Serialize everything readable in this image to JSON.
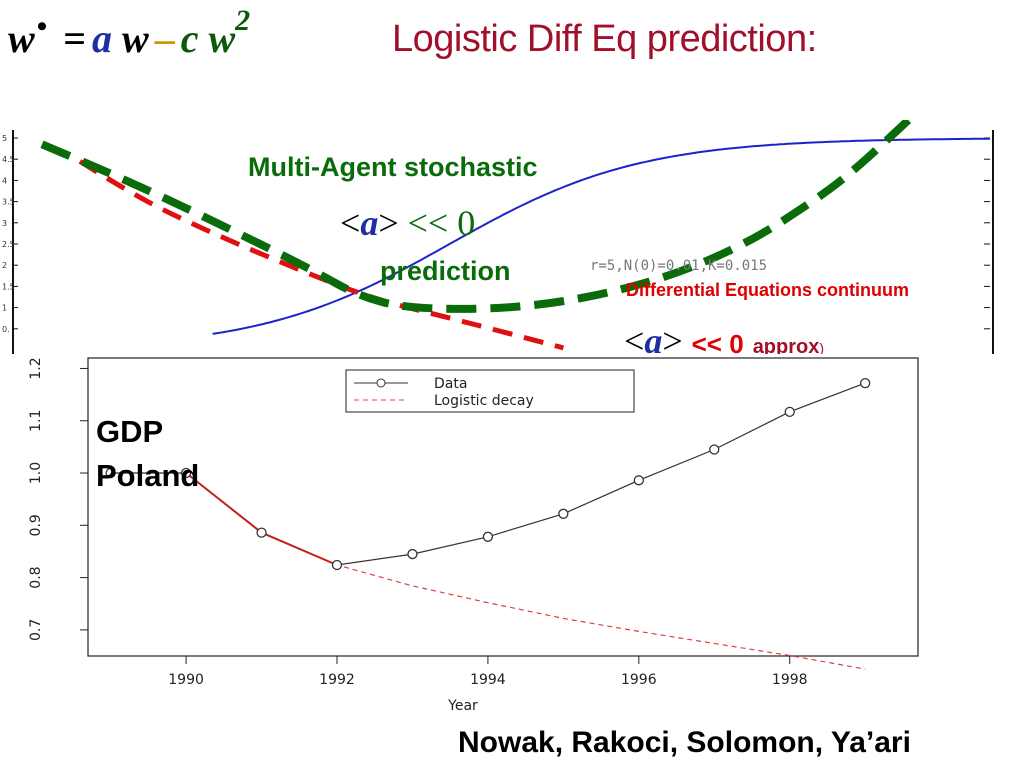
{
  "equation": {
    "lhs": "w",
    "dot": "•",
    "equals": "=",
    "a": "a",
    "w1": "w",
    "minus": "–",
    "c": "c",
    "w2": "w",
    "exp": "2"
  },
  "title": "Logistic Diff Eq prediction:",
  "labels": {
    "multi_agent": "Multi-Agent stochastic",
    "prediction": "prediction",
    "diff_eq": "Differential Equations continuum",
    "params": "r=5,N(0)=0.01,K=0.015",
    "approx": "approx",
    "approx_paren": ")",
    "lt": "<",
    "gt": ">",
    "a_sym": "a",
    "ll_zero": "<< 0",
    "ll_zero_red": "<< 0"
  },
  "gdp_label": [
    "GDP",
    "Poland"
  ],
  "credits": "Nowak, Rakoci, Solomon, Ya’ari",
  "colors": {
    "green": "#0a6b0a",
    "red_dash": "#e01010",
    "blue": "#1a24c8",
    "title": "#a0102a"
  },
  "top_chart": {
    "y_ticks": [
      "5",
      "4.5",
      "4",
      "3.5",
      "3",
      "2.5",
      "2",
      "1.5",
      "1",
      "0."
    ],
    "sigmoid": {
      "K": 5,
      "x0": 0.43,
      "k": 10
    },
    "green_dashed": [
      [
        0.0,
        4.85
      ],
      [
        0.08,
        4.1
      ],
      [
        0.18,
        3.05
      ],
      [
        0.28,
        1.95
      ],
      [
        0.34,
        1.2
      ],
      [
        0.4,
        0.95
      ],
      [
        0.52,
        1.0
      ],
      [
        0.64,
        1.55
      ],
      [
        0.74,
        2.45
      ],
      [
        0.82,
        3.6
      ],
      [
        0.86,
        4.3
      ],
      [
        0.92,
        5.55
      ]
    ],
    "red_dashed": [
      [
        0.04,
        4.45
      ],
      [
        0.1,
        3.6
      ],
      [
        0.18,
        2.75
      ],
      [
        0.27,
        1.9
      ],
      [
        0.35,
        1.2
      ],
      [
        0.44,
        0.7
      ],
      [
        0.55,
        0.05
      ]
    ]
  },
  "chart_data": {
    "type": "line",
    "xlabel": "Year",
    "ylabel": "",
    "xlim": [
      1988.7,
      1999.7
    ],
    "ylim": [
      0.65,
      1.22
    ],
    "x_ticks": [
      1990,
      1992,
      1994,
      1996,
      1998
    ],
    "y_ticks": [
      0.7,
      0.8,
      0.9,
      1.0,
      1.1,
      1.2
    ],
    "legend": {
      "position": "top-center",
      "entries": [
        "Data",
        "Logistic decay"
      ]
    },
    "series": [
      {
        "name": "Data",
        "style": "line-circle",
        "color": "#333333",
        "x": [
          1989,
          1990,
          1991,
          1992,
          1993,
          1994,
          1995,
          1996,
          1997,
          1998,
          1999
        ],
        "y": [
          1.0,
          1.0,
          0.886,
          0.824,
          0.845,
          0.878,
          0.922,
          0.986,
          1.045,
          1.117,
          1.172
        ]
      },
      {
        "name": "Logistic decay",
        "style": "dashed",
        "color": "#e04040",
        "x": [
          1989,
          1990,
          1991,
          1992,
          1993,
          1994,
          1995,
          1996,
          1997,
          1998,
          1999
        ],
        "y": [
          1.0,
          1.0,
          0.886,
          0.824,
          0.784,
          0.752,
          0.722,
          0.697,
          0.674,
          0.651,
          0.625
        ]
      },
      {
        "name": "",
        "style": "solid-red-early",
        "color": "#c02020",
        "x": [
          1990,
          1991,
          1992
        ],
        "y": [
          1.0,
          0.886,
          0.824
        ]
      }
    ]
  }
}
